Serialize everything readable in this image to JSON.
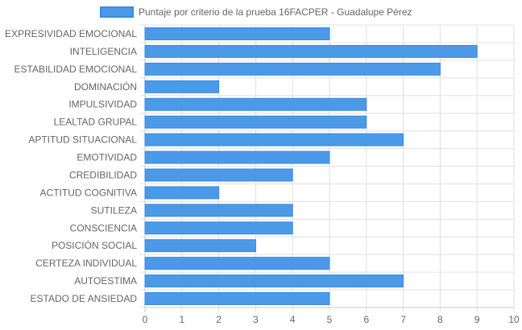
{
  "chart_data": {
    "type": "bar",
    "orientation": "horizontal",
    "legend": {
      "label": "Puntaje por criterio de la prueba 16FACPER - Guadalupe Pérez",
      "position": "top"
    },
    "categories": [
      "EXPRESIVIDAD EMOCIONAL",
      "INTELIGENCIA",
      "ESTABILIDAD EMOCIONAL",
      "DOMINACIÓN",
      "IMPULSIVIDAD",
      "LEALTAD GRUPAL",
      "APTITUD SITUACIONAL",
      "EMOTIVIDAD",
      "CREDIBILIDAD",
      "ACTITUD COGNITIVA",
      "SUTILEZA",
      "CONSCIENCIA",
      "POSICIÓN SOCIAL",
      "CERTEZA INDIVIDUAL",
      "AUTOESTIMA",
      "ESTADO DE ANSIEDAD"
    ],
    "series": [
      {
        "name": "Puntaje por criterio de la prueba 16FACPER - Guadalupe Pérez",
        "values": [
          5,
          9,
          8,
          2,
          6,
          6,
          7,
          5,
          4,
          2,
          4,
          4,
          3,
          5,
          7,
          5
        ]
      }
    ],
    "xlim": [
      0,
      10
    ],
    "xticks": [
      "0",
      "1",
      "2",
      "3",
      "4",
      "5",
      "6",
      "7",
      "8",
      "9",
      "10"
    ],
    "grid": true,
    "colors": {
      "bar_fill": "#4a9ae8",
      "bar_stroke": "#3a8ae0",
      "grid": "#e0e0e0",
      "axis": "#c8c8c8",
      "text": "#666666"
    }
  }
}
